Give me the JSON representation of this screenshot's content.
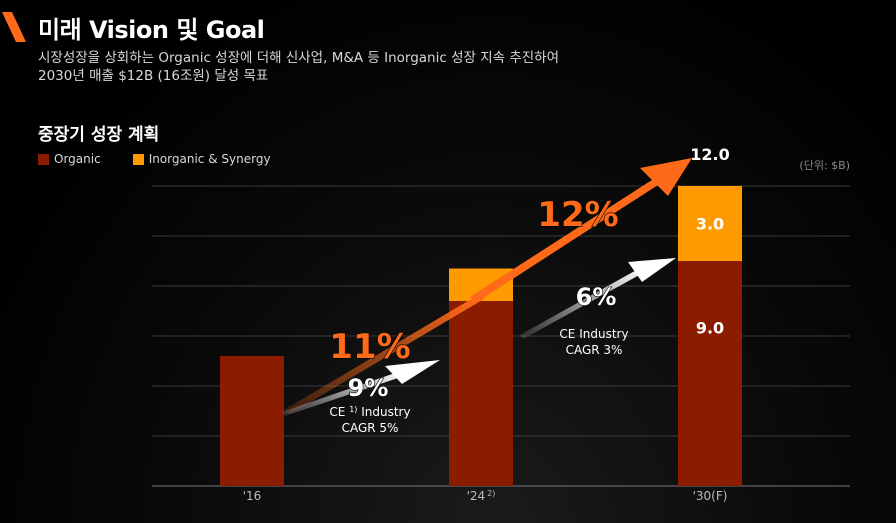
{
  "header": {
    "title": "미래 Vision 및 Goal",
    "subtitle_line1": "시장성장을 상회하는 Organic 성장에 더해 신사업, M&A 등 Inorganic 성장 지속 추진하여",
    "subtitle_line2": "2030년 매출 $12B (16조원) 달성 목표"
  },
  "section_title": "중장기 성장 계획",
  "unit_label": "(단위: $B)",
  "colors": {
    "organic": "#8b1c00",
    "inorganic": "#ff9a00",
    "accent": "#ff6a1a"
  },
  "chart_data": {
    "type": "bar",
    "stacked": true,
    "categories": [
      "'16",
      "'24",
      "'30(F)"
    ],
    "category_superscripts": [
      "",
      "2)",
      ""
    ],
    "series": [
      {
        "name": "Organic",
        "values": [
          5.2,
          7.4,
          9.0
        ]
      },
      {
        "name": "Inorganic & Synergy",
        "values": [
          0,
          1.3,
          3.0
        ]
      }
    ],
    "segment_labels": {
      "Organic": [
        "",
        "",
        "9.0"
      ],
      "Inorganic & Synergy": [
        "",
        "",
        "3.0"
      ]
    },
    "total_labels": [
      "",
      "",
      "12.0"
    ],
    "ylim": [
      0,
      12
    ],
    "grid": true,
    "legend_position": "top-left",
    "annotations": {
      "company_growth": [
        "11%",
        "12%"
      ],
      "industry_growth": [
        "9%",
        "6%"
      ],
      "industry_notes": [
        {
          "prefix": "CE",
          "sup": "1)",
          "suffix": "Industry",
          "line2": "CAGR 5%"
        },
        {
          "prefix": "CE",
          "sup": "",
          "suffix": "Industry",
          "line2": "CAGR 3%"
        }
      ]
    }
  }
}
